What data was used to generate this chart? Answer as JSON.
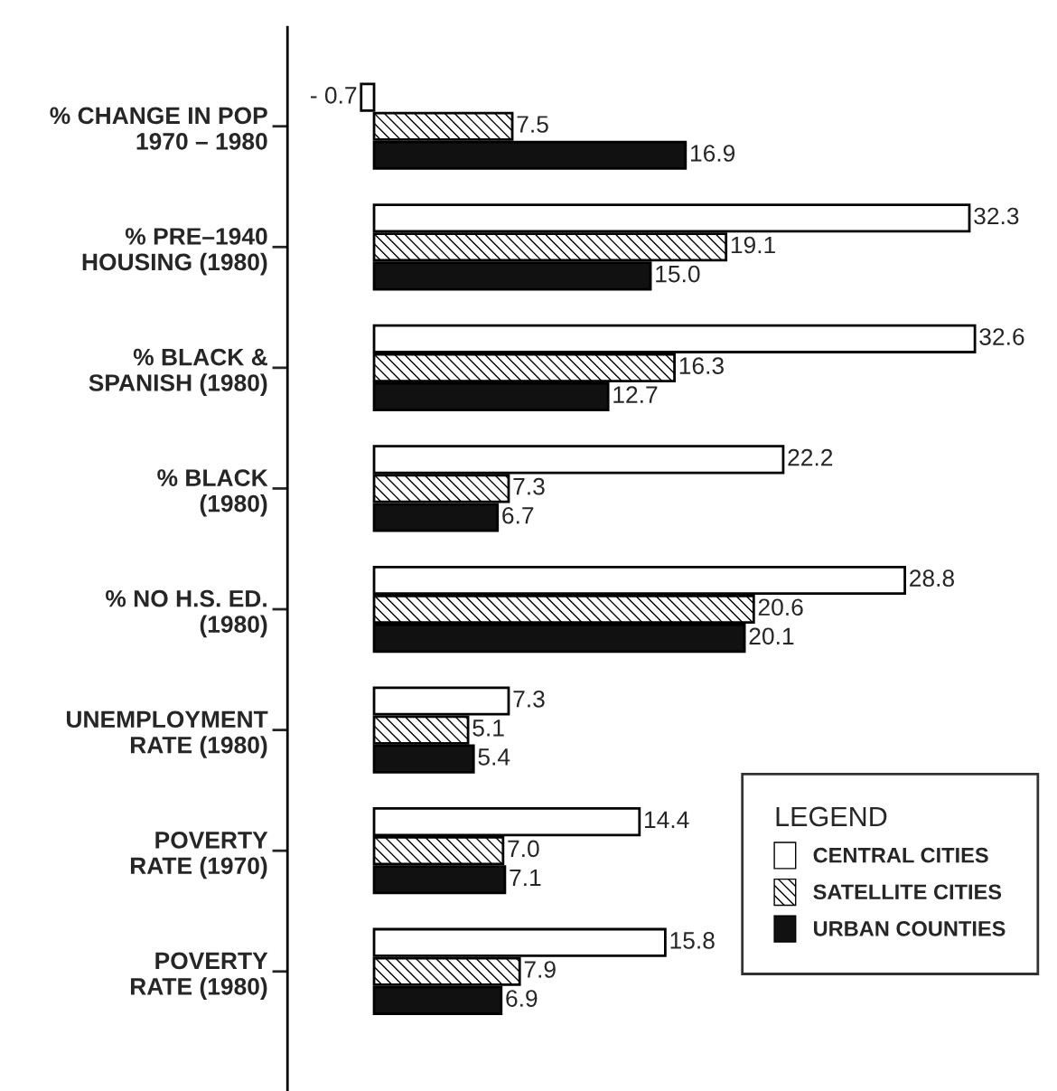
{
  "chart_data": {
    "type": "bar",
    "orientation": "horizontal",
    "categories": [
      "% CHANGE IN POP\n1970 – 1980",
      "% PRE–1940\nHOUSING (1980)",
      "% BLACK &\nSPANISH (1980)",
      "% BLACK\n(1980)",
      "% NO H.S. ED.\n(1980)",
      "UNEMPLOYMENT\nRATE (1980)",
      "POVERTY\nRATE (1970)",
      "POVERTY\nRATE (1980)"
    ],
    "series": [
      {
        "name": "CENTRAL CITIES",
        "color": "#ffffff",
        "values": [
          -0.7,
          32.3,
          32.6,
          22.2,
          28.8,
          7.3,
          14.4,
          15.8
        ],
        "value_labels": [
          "- 0.7",
          "32.3",
          "32.6",
          "22.2",
          "28.8",
          "7.3",
          "14.4",
          "15.8"
        ]
      },
      {
        "name": "SATELLITE CITIES",
        "color": "#000000",
        "values": [
          7.5,
          19.1,
          16.3,
          7.3,
          20.6,
          5.1,
          7.0,
          7.9
        ],
        "value_labels": [
          "7.5",
          "19.1",
          "16.3",
          "7.3",
          "20.6",
          "5.1",
          "7.0",
          "7.9"
        ]
      },
      {
        "name": "URBAN COUNTIES",
        "color": "#111111",
        "values": [
          16.9,
          15.0,
          12.7,
          6.7,
          20.1,
          5.4,
          7.1,
          6.9
        ],
        "value_labels": [
          "16.9",
          "15.0",
          "12.7",
          "6.7",
          "20.1",
          "5.4",
          "7.1",
          "6.9"
        ]
      }
    ],
    "tick_labels": "y",
    "legend": "bottom right",
    "legend_title": "LEGEND",
    "grid": false
  }
}
